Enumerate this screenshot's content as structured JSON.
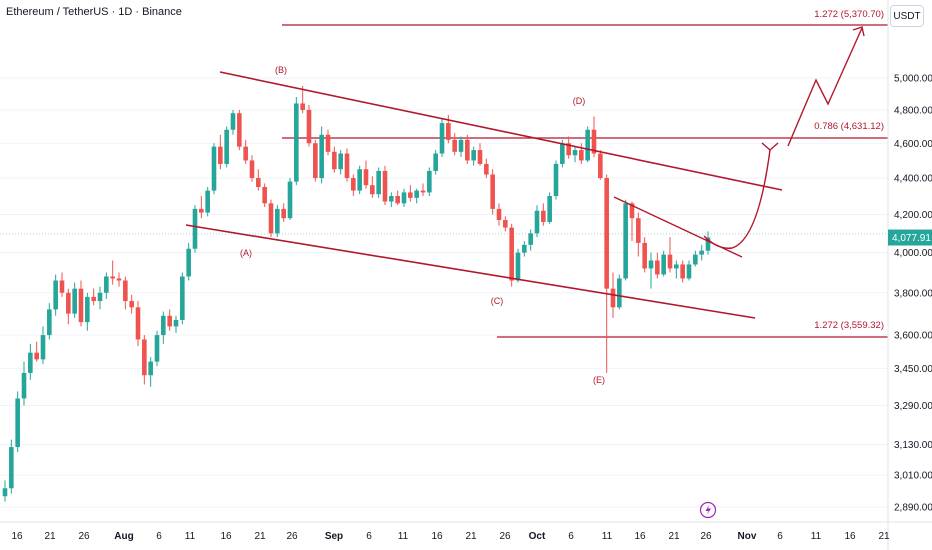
{
  "header": {
    "title": "Ethereum / TetherUS · 1D · Binance",
    "currency": "USDT"
  },
  "price_axis": {
    "ticks": [
      "5,000.00",
      "4,800.00",
      "4,600.00",
      "4,400.00",
      "4,200.00",
      "4,000.00",
      "3,800.00",
      "3,600.00",
      "3,450.00",
      "3,290.00",
      "3,130.00",
      "3,010.00",
      "2,890.00"
    ],
    "current_price_label": "4,077.91"
  },
  "time_axis": {
    "ticks": [
      "16",
      "21",
      "26",
      "Aug",
      "6",
      "11",
      "16",
      "21",
      "26",
      "Sep",
      "6",
      "11",
      "16",
      "21",
      "26",
      "Oct",
      "6",
      "11",
      "16",
      "21",
      "26",
      "Nov",
      "6",
      "11",
      "16",
      "21"
    ]
  },
  "annotations": {
    "wave_labels": [
      "(A)",
      "(B)",
      "(C)",
      "(D)",
      "(E)"
    ],
    "fib_1": "1.272 (5,370.70)",
    "fib_2": "0.786 (4,631.12)",
    "fib_3": "1.272 (3,559.32)"
  },
  "colors": {
    "up": "#26a69a",
    "down": "#ef5350",
    "drawing": "#b2182b",
    "lightning_icon": "#9c27b0"
  },
  "chart_data": {
    "type": "candlestick",
    "title": "Ethereum / TetherUS · 1D · Binance",
    "symbol": "ETH/USDT",
    "timeframe": "1D",
    "exchange": "Binance",
    "ylim": [
      2820,
      5450
    ],
    "y_scale": "log",
    "current_price": 4077.91,
    "fib_levels": [
      {
        "label": "1.272",
        "value": 5370.7
      },
      {
        "label": "0.786",
        "value": 4631.12
      },
      {
        "label": "1.272",
        "value": 3559.32
      }
    ],
    "candles": [
      [
        2930,
        2990,
        2910,
        2960
      ],
      [
        2960,
        3150,
        2940,
        3120
      ],
      [
        3120,
        3350,
        3100,
        3320
      ],
      [
        3320,
        3480,
        3290,
        3430
      ],
      [
        3430,
        3560,
        3400,
        3520
      ],
      [
        3520,
        3570,
        3480,
        3490
      ],
      [
        3490,
        3640,
        3470,
        3600
      ],
      [
        3600,
        3750,
        3580,
        3720
      ],
      [
        3720,
        3890,
        3690,
        3860
      ],
      [
        3860,
        3900,
        3780,
        3800
      ],
      [
        3800,
        3820,
        3650,
        3700
      ],
      [
        3700,
        3850,
        3680,
        3820
      ],
      [
        3820,
        3860,
        3640,
        3660
      ],
      [
        3660,
        3800,
        3620,
        3780
      ],
      [
        3780,
        3820,
        3740,
        3760
      ],
      [
        3760,
        3830,
        3720,
        3800
      ],
      [
        3800,
        3900,
        3770,
        3880
      ],
      [
        3880,
        3960,
        3840,
        3870
      ],
      [
        3870,
        3900,
        3830,
        3860
      ],
      [
        3860,
        3880,
        3720,
        3760
      ],
      [
        3760,
        3790,
        3700,
        3730
      ],
      [
        3730,
        3760,
        3550,
        3580
      ],
      [
        3580,
        3600,
        3380,
        3420
      ],
      [
        3420,
        3500,
        3370,
        3480
      ],
      [
        3480,
        3620,
        3460,
        3600
      ],
      [
        3600,
        3710,
        3560,
        3690
      ],
      [
        3690,
        3720,
        3620,
        3640
      ],
      [
        3640,
        3690,
        3610,
        3670
      ],
      [
        3670,
        3900,
        3650,
        3880
      ],
      [
        3880,
        4050,
        3860,
        4020
      ],
      [
        4020,
        4250,
        4000,
        4230
      ],
      [
        4230,
        4300,
        4180,
        4210
      ],
      [
        4210,
        4350,
        4190,
        4330
      ],
      [
        4330,
        4600,
        4310,
        4580
      ],
      [
        4580,
        4650,
        4450,
        4480
      ],
      [
        4480,
        4700,
        4460,
        4680
      ],
      [
        4680,
        4800,
        4650,
        4780
      ],
      [
        4780,
        4800,
        4560,
        4580
      ],
      [
        4580,
        4620,
        4480,
        4500
      ],
      [
        4500,
        4530,
        4380,
        4400
      ],
      [
        4400,
        4450,
        4330,
        4350
      ],
      [
        4350,
        4370,
        4240,
        4260
      ],
      [
        4260,
        4280,
        4080,
        4100
      ],
      [
        4100,
        4250,
        4080,
        4230
      ],
      [
        4230,
        4260,
        4160,
        4180
      ],
      [
        4180,
        4400,
        4170,
        4380
      ],
      [
        4380,
        4880,
        4360,
        4840
      ],
      [
        4840,
        4950,
        4780,
        4800
      ],
      [
        4800,
        4830,
        4580,
        4600
      ],
      [
        4600,
        4620,
        4380,
        4400
      ],
      [
        4400,
        4700,
        4370,
        4650
      ],
      [
        4650,
        4680,
        4530,
        4550
      ],
      [
        4550,
        4580,
        4430,
        4450
      ],
      [
        4450,
        4560,
        4420,
        4540
      ],
      [
        4540,
        4570,
        4380,
        4400
      ],
      [
        4400,
        4420,
        4300,
        4330
      ],
      [
        4330,
        4470,
        4310,
        4450
      ],
      [
        4450,
        4500,
        4340,
        4360
      ],
      [
        4360,
        4410,
        4290,
        4310
      ],
      [
        4310,
        4460,
        4290,
        4440
      ],
      [
        4440,
        4470,
        4250,
        4270
      ],
      [
        4270,
        4320,
        4240,
        4300
      ],
      [
        4300,
        4330,
        4250,
        4260
      ],
      [
        4260,
        4340,
        4240,
        4320
      ],
      [
        4320,
        4360,
        4270,
        4290
      ],
      [
        4290,
        4340,
        4260,
        4330
      ],
      [
        4330,
        4370,
        4300,
        4320
      ],
      [
        4320,
        4460,
        4300,
        4440
      ],
      [
        4440,
        4560,
        4420,
        4540
      ],
      [
        4540,
        4750,
        4520,
        4720
      ],
      [
        4720,
        4770,
        4600,
        4620
      ],
      [
        4620,
        4660,
        4530,
        4550
      ],
      [
        4550,
        4640,
        4520,
        4620
      ],
      [
        4620,
        4650,
        4480,
        4500
      ],
      [
        4500,
        4580,
        4470,
        4560
      ],
      [
        4560,
        4600,
        4470,
        4480
      ],
      [
        4480,
        4510,
        4400,
        4420
      ],
      [
        4420,
        4450,
        4200,
        4230
      ],
      [
        4230,
        4260,
        4140,
        4170
      ],
      [
        4170,
        4190,
        4110,
        4130
      ],
      [
        4130,
        4150,
        3830,
        3860
      ],
      [
        3860,
        4020,
        3850,
        4000
      ],
      [
        4000,
        4060,
        3980,
        4040
      ],
      [
        4040,
        4120,
        4010,
        4100
      ],
      [
        4100,
        4250,
        4080,
        4220
      ],
      [
        4220,
        4260,
        4140,
        4160
      ],
      [
        4160,
        4320,
        4150,
        4300
      ],
      [
        4300,
        4500,
        4280,
        4480
      ],
      [
        4480,
        4620,
        4460,
        4600
      ],
      [
        4600,
        4640,
        4510,
        4530
      ],
      [
        4530,
        4580,
        4490,
        4560
      ],
      [
        4560,
        4600,
        4480,
        4500
      ],
      [
        4500,
        4700,
        4490,
        4680
      ],
      [
        4680,
        4760,
        4520,
        4540
      ],
      [
        4540,
        4560,
        4390,
        4400
      ],
      [
        4400,
        4420,
        3430,
        3820
      ],
      [
        3820,
        3900,
        3680,
        3730
      ],
      [
        3730,
        3890,
        3720,
        3870
      ],
      [
        3870,
        4280,
        3860,
        4260
      ],
      [
        4260,
        4270,
        4060,
        4180
      ],
      [
        4180,
        4210,
        3980,
        4050
      ],
      [
        4050,
        4080,
        3900,
        3920
      ],
      [
        3920,
        4000,
        3820,
        3960
      ],
      [
        3960,
        4000,
        3870,
        3890
      ],
      [
        3890,
        4010,
        3880,
        3990
      ],
      [
        3990,
        4080,
        3900,
        3920
      ],
      [
        3920,
        3960,
        3870,
        3940
      ],
      [
        3940,
        3960,
        3850,
        3870
      ],
      [
        3870,
        3960,
        3860,
        3940
      ],
      [
        3940,
        4010,
        3930,
        3990
      ],
      [
        3990,
        4040,
        3960,
        4010
      ],
      [
        4010,
        4110,
        3990,
        4078
      ]
    ]
  }
}
